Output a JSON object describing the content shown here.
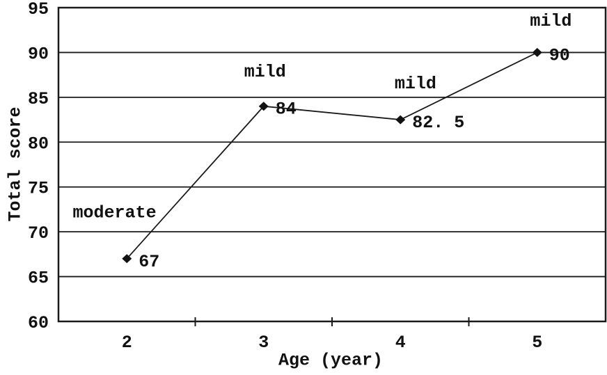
{
  "chart_data": {
    "type": "line",
    "title": "",
    "xlabel": "Age (year)",
    "ylabel": "Total score",
    "categories": [
      "2",
      "3",
      "4",
      "5"
    ],
    "x_numeric": [
      2,
      3,
      4,
      5
    ],
    "series": [
      {
        "name": "Total score",
        "values": [
          67,
          84,
          82.5,
          90
        ]
      }
    ],
    "point_labels": [
      "67",
      "84",
      "82. 5",
      "90"
    ],
    "annotations": [
      {
        "text": "moderate",
        "x": 1.91,
        "y": 72.3
      },
      {
        "text": "mild",
        "x": 3.01,
        "y": 88.0
      },
      {
        "text": "mild",
        "x": 4.11,
        "y": 86.7
      },
      {
        "text": "mild",
        "x": 5.1,
        "y": 93.7
      }
    ],
    "ylim": [
      60,
      95
    ],
    "ytick_step": 5,
    "grid": "horizontal",
    "legend": "none",
    "marker": "diamond",
    "line_color": "#1a1a1a",
    "text_color": "#111111",
    "background_color": "#ffffff"
  }
}
